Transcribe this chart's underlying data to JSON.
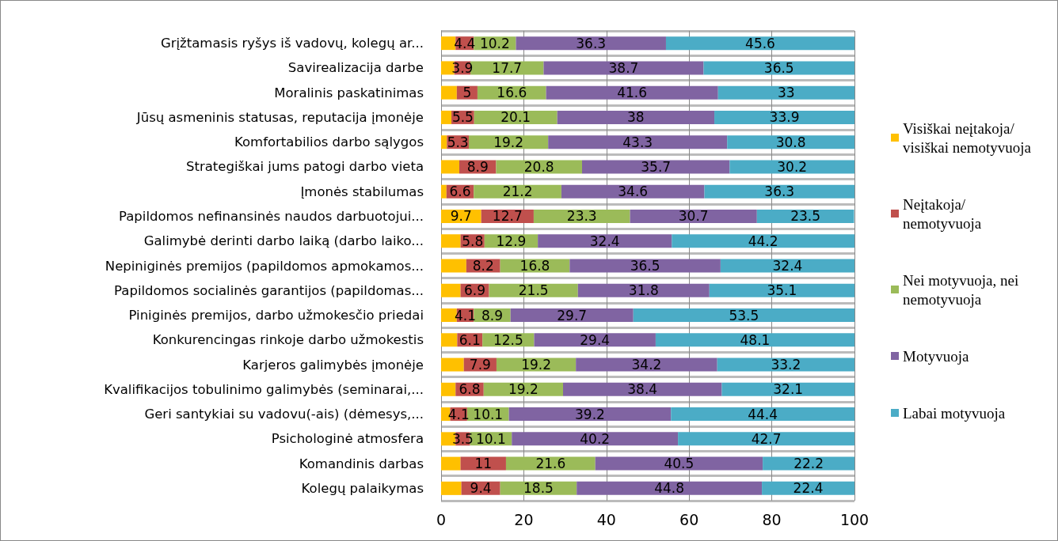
{
  "chart_data": {
    "type": "bar",
    "orientation": "horizontal",
    "stacked": true,
    "grid": true,
    "legend": "right",
    "categories": [
      "Grįžtamasis ryšys iš vadovų, kolegų ar...",
      "Savirealizacija darbe",
      "Moralinis paskatinimas",
      "Jūsų asmeninis statusas, reputacija įmonėje",
      "Komfortabilios darbo sąlygos",
      "Strategiškai jums patogi darbo vieta",
      "Įmonės stabilumas",
      "Papildomos nefinansinės naudos darbuotojui...",
      "Galimybė derinti darbo laiką (darbo laiko...",
      "Nepiniginės premijos (papildomos apmokamos...",
      "Papildomos socialinės garantijos (papildomas...",
      "Piniginės premijos, darbo užmokesčio priedai",
      "Konkurencingas rinkoje darbo užmokestis",
      "Karjeros galimybės įmonėje",
      "Kvalifikacijos tobulinimo galimybės (seminarai,...",
      "Geri santykiai su vadovu(-ais) (dėmesys,...",
      "Psichologinė atmosfera",
      "Komandinis darbas",
      "Kolegų palaikymas"
    ],
    "xlim": [
      0,
      100
    ],
    "xticks": [
      0,
      20,
      40,
      60,
      80,
      100
    ],
    "series": [
      {
        "name": "Visiškai neįtakoja/ visiškai nemotyvuoja",
        "color": "#ffc000",
        "values": [
          3.5,
          3.2,
          3.8,
          2.5,
          1.4,
          4.4,
          1.3,
          9.7,
          4.7,
          6.1,
          4.7,
          3.8,
          3.9,
          5.5,
          3.5,
          2.2,
          3.5,
          4.7,
          4.9
        ],
        "value_labels": [
          null,
          null,
          null,
          null,
          null,
          null,
          null,
          "9.7",
          null,
          null,
          null,
          null,
          null,
          null,
          null,
          null,
          null,
          null,
          null
        ]
      },
      {
        "name": "Neįtakoja/ nemotyvuoja",
        "color": "#c0504d",
        "values": [
          4.4,
          3.9,
          5,
          5.5,
          5.3,
          8.9,
          6.6,
          12.7,
          5.8,
          8.2,
          6.9,
          4.1,
          6.1,
          7.9,
          6.8,
          4.1,
          3.5,
          11,
          9.4
        ],
        "value_labels": [
          "4.4",
          "3.9",
          "5",
          "5.5",
          "5.3",
          "8.9",
          "6.6",
          "12.7",
          "5.8",
          "8.2",
          "6.9",
          "4.1",
          "6.1",
          "7.9",
          "6.8",
          "4.1",
          "3.5",
          "11",
          "9.4"
        ]
      },
      {
        "name": "Nei motyvuoja, nei nemotyvuoja",
        "color": "#9bbb59",
        "values": [
          10.2,
          17.7,
          16.6,
          20.1,
          19.2,
          20.8,
          21.2,
          23.3,
          12.9,
          16.8,
          21.5,
          8.9,
          12.5,
          19.2,
          19.2,
          10.1,
          10.1,
          21.6,
          18.5
        ],
        "value_labels": [
          "10.2",
          "17.7",
          "16.6",
          "20.1",
          "19.2",
          "20.8",
          "21.2",
          "23.3",
          "12.9",
          "16.8",
          "21.5",
          "8.9",
          "12.5",
          "19.2",
          "19.2",
          "10.1",
          "10.1",
          "21.6",
          "18.5"
        ]
      },
      {
        "name": "Motyvuoja",
        "color": "#8064a2",
        "values": [
          36.3,
          38.7,
          41.6,
          38,
          43.3,
          35.7,
          34.6,
          30.7,
          32.4,
          36.5,
          31.8,
          29.7,
          29.4,
          34.2,
          38.4,
          39.2,
          40.2,
          40.5,
          44.8
        ],
        "value_labels": [
          "36.3",
          "38.7",
          "41.6",
          "38",
          "43.3",
          "35.7",
          "34.6",
          "30.7",
          "32.4",
          "36.5",
          "31.8",
          "29.7",
          "29.4",
          "34.2",
          "38.4",
          "39.2",
          "40.2",
          "40.5",
          "44.8"
        ]
      },
      {
        "name": "Labai motyvuoja",
        "color": "#4bacc6",
        "values": [
          45.6,
          36.5,
          33,
          33.9,
          30.8,
          30.2,
          36.3,
          23.5,
          44.2,
          32.4,
          35.1,
          53.5,
          48.1,
          33.2,
          32.1,
          44.4,
          42.7,
          22.2,
          22.4
        ],
        "value_labels": [
          "45.6",
          "36.5",
          "33",
          "33.9",
          "30.8",
          "30.2",
          "36.3",
          "23.5",
          "44.2",
          "32.4",
          "35.1",
          "53.5",
          "48.1",
          "33.2",
          "32.1",
          "44.4",
          "42.7",
          "22.2",
          "22.4"
        ]
      }
    ]
  }
}
